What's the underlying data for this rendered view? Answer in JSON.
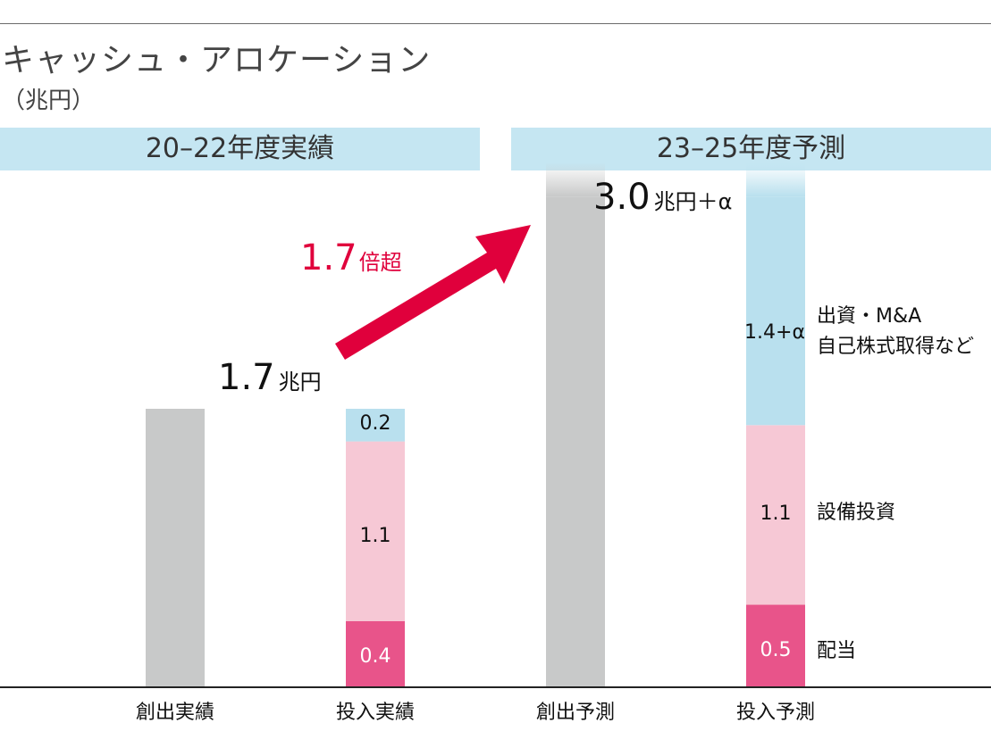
{
  "title": "キャッシュ・アロケーション",
  "unit": "（兆円）",
  "periods": {
    "actual": "20–22年度実績",
    "forecast": "23–25年度予測"
  },
  "totals": {
    "actual": {
      "value": "1.7",
      "unit": "兆円"
    },
    "forecast": {
      "value": "3.0",
      "unit": "兆円＋α"
    }
  },
  "growth": {
    "value": "1.7",
    "suffix": "倍超"
  },
  "legend": {
    "ma": "出資・M&A",
    "ma2": "自己株式取得など",
    "capex": "設備投資",
    "dividend": "配当"
  },
  "colors": {
    "creation": "#c8c9c9",
    "ma": "#b9e0ee",
    "capex": "#f6c8d5",
    "dividend": "#e8548a",
    "arrow": "#e0003c"
  },
  "chart_data": {
    "type": "bar",
    "stacked": true,
    "title": "キャッシュ・アロケーション",
    "ylabel": "（兆円）",
    "categories": [
      "創出実績",
      "投入実績",
      "創出予測",
      "投入予測"
    ],
    "ylim": [
      0,
      3.0
    ],
    "series": [
      {
        "name": "創出",
        "values": [
          1.7,
          null,
          3.0,
          null
        ]
      },
      {
        "name": "配当",
        "values": [
          null,
          0.4,
          null,
          0.5
        ],
        "labels": [
          "",
          "0.4",
          "",
          "0.5"
        ]
      },
      {
        "name": "設備投資",
        "values": [
          null,
          1.1,
          null,
          1.1
        ],
        "labels": [
          "",
          "1.1",
          "",
          "1.1"
        ]
      },
      {
        "name": "出資・M&A 自己株式取得など",
        "values": [
          null,
          0.2,
          null,
          1.4
        ],
        "labels": [
          "",
          "0.2",
          "",
          "1.4+α"
        ]
      }
    ]
  }
}
